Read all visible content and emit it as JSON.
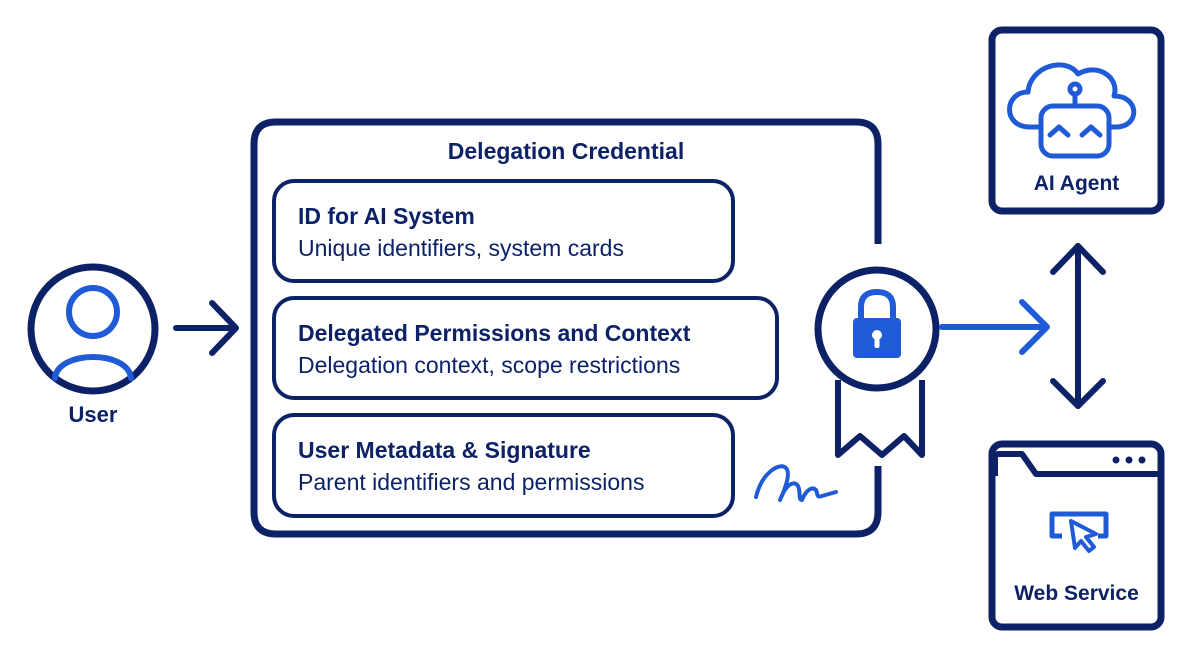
{
  "user": {
    "label": "User"
  },
  "credential": {
    "title": "Delegation Credential",
    "cards": [
      {
        "title": "ID for AI System",
        "desc": "Unique identifiers, system cards"
      },
      {
        "title": "Delegated Permissions and Context",
        "desc": "Delegation context, scope restrictions"
      },
      {
        "title": "User Metadata & Signature",
        "desc": "Parent identifiers and permissions"
      }
    ]
  },
  "ai_agent": {
    "label": "AI Agent"
  },
  "web_service": {
    "label": "Web Service"
  },
  "icons": [
    "user-icon",
    "lock-icon",
    "seal-ribbon-icon",
    "signature-icon",
    "robot-cloud-icon",
    "browser-window-icon",
    "cursor-icon"
  ],
  "colors": {
    "navy": "#0d2266",
    "blue": "#1f5bd6"
  }
}
